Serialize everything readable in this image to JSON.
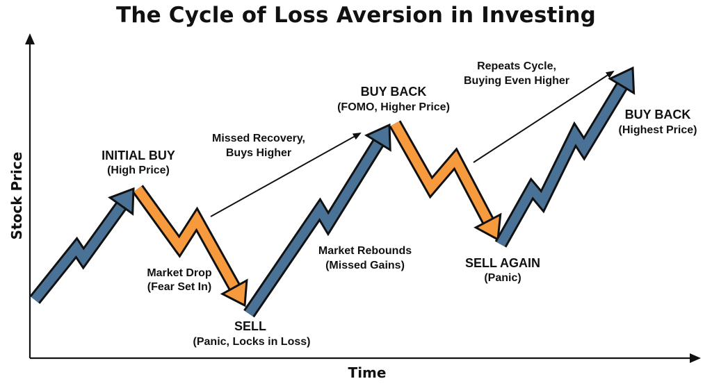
{
  "title": "The Cycle of Loss Aversion in Investing",
  "axes": {
    "x_label": "Time",
    "y_label": "Stock Price"
  },
  "colors": {
    "rise": "#4a7196",
    "fall": "#f79a3e",
    "outline": "#111111",
    "text": "#111111"
  },
  "labels": {
    "initial_buy": {
      "title": "INITIAL BUY",
      "sub": "(High Price)"
    },
    "market_drop": {
      "line1": "Market Drop",
      "line2": "(Fear Set In)"
    },
    "sell": {
      "title": "SELL",
      "sub": "(Panic, Locks in Loss)"
    },
    "missed_recovery": {
      "line1": "Missed Recovery,",
      "line2": "Buys Higher"
    },
    "market_rebounds": {
      "line1": "Market Rebounds",
      "line2": "(Missed Gains)"
    },
    "buy_back_1": {
      "title": "BUY BACK",
      "sub": "(FOMO, Higher Price)"
    },
    "sell_again": {
      "title": "SELL AGAIN",
      "sub": "(Panic)"
    },
    "repeats_cycle": {
      "line1": "Repeats Cycle,",
      "line2": "Buying Even Higher"
    },
    "buy_back_2": {
      "title": "BUY BACK",
      "sub": "(Highest Price)"
    }
  }
}
